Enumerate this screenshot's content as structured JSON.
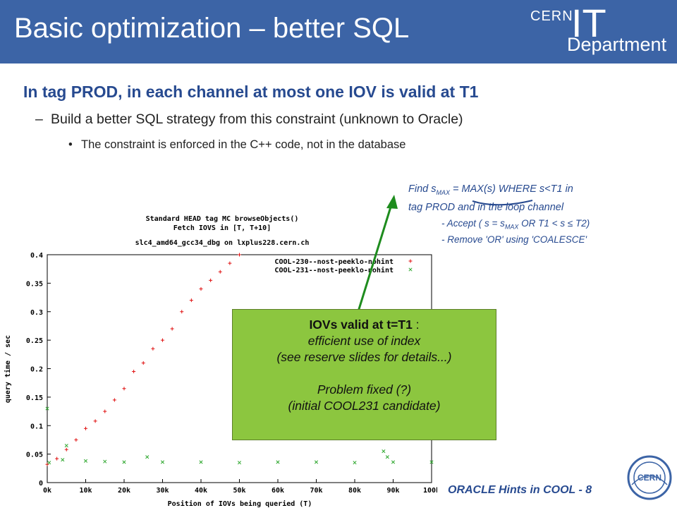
{
  "header": {
    "title": "Basic optimization – better SQL",
    "logo_cern": "CERN",
    "logo_it": "IT",
    "logo_department": "Department"
  },
  "bullets": {
    "level1": "In tag PROD, in each channel at most one IOV is valid at T1",
    "level2_marker": "–",
    "level2": "Build a better SQL strategy from this constraint (unknown to Oracle)",
    "level3_marker": "•",
    "level3": "The constraint is enforced in the C++ code, not in the database"
  },
  "note": {
    "find_prefix": "Find s",
    "find_sub": "MAX",
    "find_rest": " = MAX(s) WHERE s<T1 in",
    "line2": "tag PROD and in the loop channel",
    "accept_prefix": "- Accept ( s = s",
    "accept_sub": "MAX",
    "accept_rest": " OR T1 < s ≤ T2)",
    "remove": "- Remove 'OR' using 'COALESCE'"
  },
  "greenbox": {
    "line1_bold": "IOVs valid at t=T1",
    "line1_rest": " :",
    "line2": "efficient use of index",
    "line3": "(see reserve slides for details...)",
    "line4": "Problem fixed (?)",
    "line5": "(initial COOL231 candidate)"
  },
  "footer": {
    "text": "ORACLE Hints in COOL - 8"
  },
  "colors": {
    "header_bg": "#3c64a6",
    "title_blue": "#274a90",
    "greenbox": "#8cc63f",
    "arrow": "#1e8c1e",
    "series_230": "#e01010",
    "series_231": "#30a830"
  },
  "chart_data": {
    "type": "scatter",
    "title": "Standard HEAD tag MC browseObjects()",
    "subtitle": "Fetch IOVS in [T, T+10]",
    "subtitle2": "slc4_amd64_gcc34_dbg on lxplus228.cern.ch",
    "xlabel": "Position of IOVs being queried (T)",
    "ylabel": "query time / sec",
    "xlim": [
      0,
      100000
    ],
    "ylim": [
      0,
      0.4
    ],
    "x_ticks": [
      "0k",
      "10k",
      "20k",
      "30k",
      "40k",
      "50k",
      "60k",
      "70k",
      "80k",
      "90k",
      "100k"
    ],
    "y_ticks": [
      "0",
      "0.05",
      "0.1",
      "0.15",
      "0.2",
      "0.25",
      "0.3",
      "0.35",
      "0.4"
    ],
    "legend_position": "top-right",
    "series": [
      {
        "name": "COOL-230--nost-peeklo-nohint",
        "marker": "+",
        "x": [
          0,
          2500,
          5000,
          7500,
          10000,
          12500,
          15000,
          17500,
          20000,
          22500,
          25000,
          27500,
          30000,
          32500,
          35000,
          37500,
          40000,
          42500,
          45000,
          47500,
          50000
        ],
        "y": [
          0.032,
          0.042,
          0.058,
          0.075,
          0.095,
          0.108,
          0.125,
          0.145,
          0.165,
          0.195,
          0.21,
          0.235,
          0.25,
          0.27,
          0.3,
          0.32,
          0.34,
          0.355,
          0.37,
          0.385,
          0.4
        ]
      },
      {
        "name": "COOL-231--nost-peeklo-nohint",
        "marker": "x",
        "x": [
          0,
          500,
          4000,
          5000,
          10000,
          15000,
          20000,
          26000,
          30000,
          40000,
          50000,
          60000,
          70000,
          80000,
          87500,
          88500,
          90000,
          100000
        ],
        "y": [
          0.13,
          0.035,
          0.04,
          0.065,
          0.038,
          0.037,
          0.036,
          0.045,
          0.036,
          0.036,
          0.035,
          0.036,
          0.036,
          0.035,
          0.055,
          0.045,
          0.036,
          0.036
        ]
      }
    ]
  }
}
